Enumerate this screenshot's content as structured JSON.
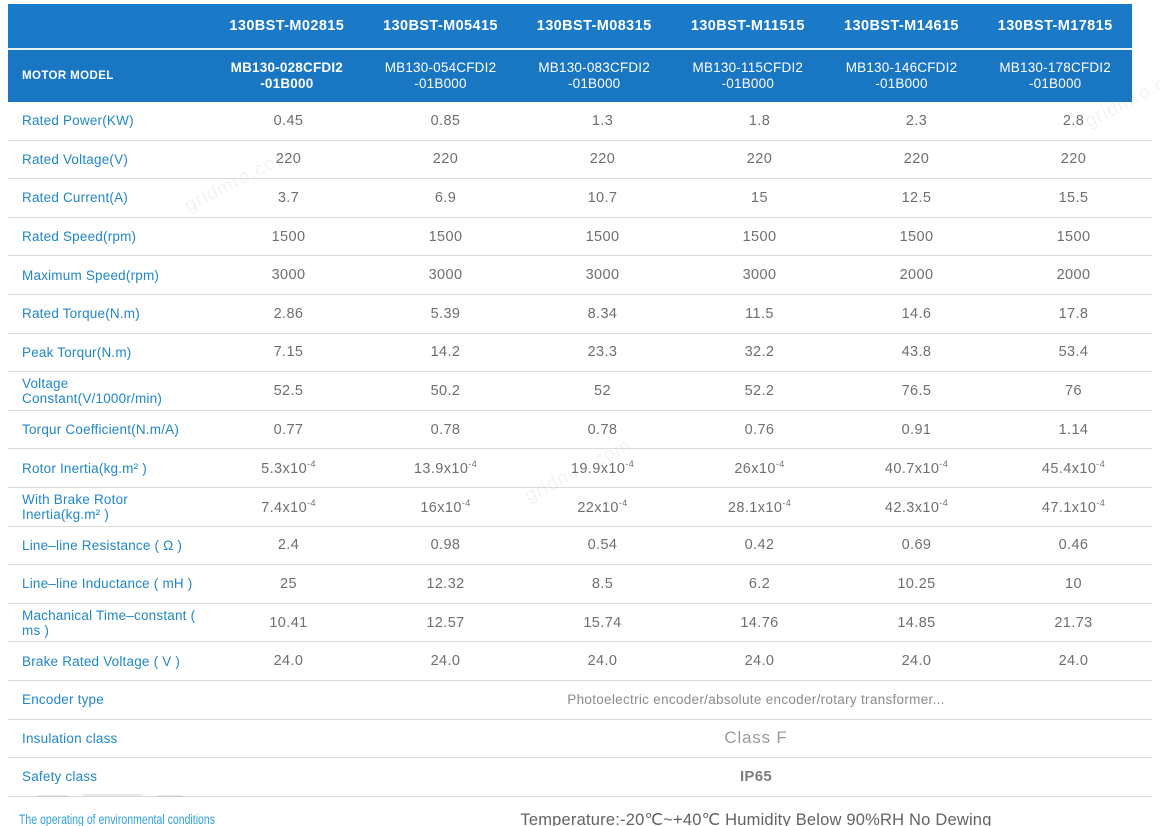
{
  "watermark": {
    "text": "gridmro.com"
  },
  "colors": {
    "header_blue_top": "#1b7ac7",
    "header_blue_bottom": "#1876c3",
    "label_blue": "#2187c8",
    "env_label_blue": "#2ea3dc",
    "value_gray": "#6f6f6f",
    "divider_gray": "#dadada"
  },
  "header": {
    "corner_label": "MOTOR MODEL",
    "columns": [
      {
        "series": "130BST-M02815",
        "model_line1": "MB130-028CFDI2",
        "model_line2": "-01B000"
      },
      {
        "series": "130BST-M05415",
        "model_line1": "MB130-054CFDI2",
        "model_line2": "-01B000"
      },
      {
        "series": "130BST-M08315",
        "model_line1": "MB130-083CFDI2",
        "model_line2": "-01B000"
      },
      {
        "series": "130BST-M11515",
        "model_line1": "MB130-115CFDI2",
        "model_line2": "-01B000"
      },
      {
        "series": "130BST-M14615",
        "model_line1": "MB130-146CFDI2",
        "model_line2": "-01B000"
      },
      {
        "series": "130BST-M17815",
        "model_line1": "MB130-178CFDI2",
        "model_line2": "-01B000"
      }
    ]
  },
  "table": {
    "rows": [
      {
        "label": "Rated Power(KW)",
        "values": [
          "0.45",
          "0.85",
          "1.3",
          "1.8",
          "2.3",
          "2.8"
        ]
      },
      {
        "label": "Rated Voltage(V)",
        "values": [
          "220",
          "220",
          "220",
          "220",
          "220",
          "220"
        ]
      },
      {
        "label": "Rated Current(A)",
        "values": [
          "3.7",
          "6.9",
          "10.7",
          "15",
          "12.5",
          "15.5"
        ]
      },
      {
        "label": "Rated Speed(rpm)",
        "values": [
          "1500",
          "1500",
          "1500",
          "1500",
          "1500",
          "1500"
        ]
      },
      {
        "label": "Maximum Speed(rpm)",
        "values": [
          "3000",
          "3000",
          "3000",
          "3000",
          "2000",
          "2000"
        ]
      },
      {
        "label": "Rated Torque(N.m)",
        "values": [
          "2.86",
          "5.39",
          "8.34",
          "11.5",
          "14.6",
          "17.8"
        ]
      },
      {
        "label": "Peak Torqur(N.m)",
        "values": [
          "7.15",
          "14.2",
          "23.3",
          "32.2",
          "43.8",
          "53.4"
        ]
      },
      {
        "label": "Voltage Constant(V/1000r/min)",
        "values": [
          "52.5",
          "50.2",
          "52",
          "52.2",
          "76.5",
          "76"
        ]
      },
      {
        "label": "Torqur Coefficient(N.m/A)",
        "values": [
          "0.77",
          "0.78",
          "0.78",
          "0.76",
          "0.91",
          "1.14"
        ]
      },
      {
        "label": "Rotor Inertia(kg.m² )",
        "values": [
          "5.3x10^-4",
          "13.9x10^-4",
          "19.9x10^-4",
          "26x10^-4",
          "40.7x10^-4",
          "45.4x10^-4"
        ]
      },
      {
        "label": "With Brake Rotor Inertia(kg.m² )",
        "values": [
          "7.4x10^-4",
          "16x10^-4",
          "22x10^-4",
          "28.1x10^-4",
          "42.3x10^-4",
          "47.1x10^-4"
        ]
      },
      {
        "label": "Line–line Resistance ( Ω )",
        "values": [
          "2.4",
          "0.98",
          "0.54",
          "0.42",
          "0.69",
          "0.46"
        ]
      },
      {
        "label": "Line–line Inductance ( mH )",
        "values": [
          "25",
          "12.32",
          "8.5",
          "6.2",
          "10.25",
          "10"
        ]
      },
      {
        "label": "Machanical Time–constant ( ms )",
        "values": [
          "10.41",
          "12.57",
          "15.74",
          "14.76",
          "14.85",
          "21.73"
        ]
      },
      {
        "label": "Brake Rated Voltage ( V )",
        "values": [
          "24.0",
          "24.0",
          "24.0",
          "24.0",
          "24.0",
          "24.0"
        ]
      },
      {
        "label": "Encoder type",
        "merged": "Photoelectric encoder/absolute encoder/rotary transformer...",
        "key": "encoder"
      },
      {
        "label": "Insulation class",
        "merged": "Class F",
        "key": "insulation"
      },
      {
        "label": "Safety class",
        "merged": "IP65",
        "key": "safety"
      }
    ]
  },
  "env_row": {
    "label": "The operating of environmental conditions",
    "value": "Temperature:-20℃~+40℃  Humidity Below 90%RH No Dewing"
  }
}
